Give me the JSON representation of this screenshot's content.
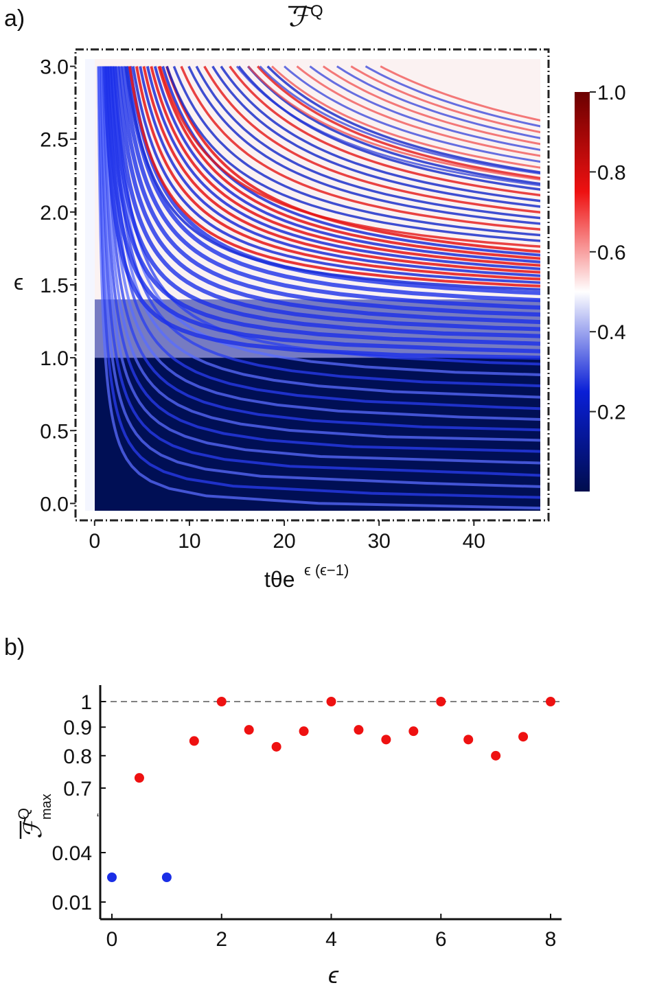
{
  "panels": {
    "a": "a)",
    "b": "b)"
  },
  "chart_data": [
    {
      "type": "heatmap",
      "title_symbol": "ℱ",
      "title_sup": "Q",
      "xlabel": "tθe",
      "xlabel_sup": "ϵ (ϵ−1)",
      "ylabel": "ϵ",
      "xlim": [
        -1,
        47
      ],
      "ylim": [
        -0.05,
        3.05
      ],
      "xticks": [
        0,
        10,
        20,
        30,
        40
      ],
      "xtick_labels": [
        "0",
        "10",
        "20",
        "30",
        "40"
      ],
      "yticks": [
        0.0,
        0.5,
        1.0,
        1.5,
        2.0,
        2.5,
        3.0
      ],
      "ytick_labels": [
        "0.0",
        "0.5",
        "1.0",
        "1.5",
        "2.0",
        "2.5",
        "3.0"
      ],
      "colorbar": {
        "min": 0.0,
        "max": 1.0,
        "ticks": [
          1.0,
          0.8,
          0.6,
          0.4,
          0.2
        ],
        "tick_labels": [
          "1.0",
          "0.8",
          "0.6",
          "0.4",
          "0.2"
        ],
        "colors": [
          "#000d4d",
          "#0a1fd6",
          "#ffffff",
          "#ee1111",
          "#6b0000"
        ]
      }
    },
    {
      "type": "scatter",
      "xlabel": "ϵ",
      "ylabel_symbol": "ℱ",
      "ylabel_sup": "Q",
      "ylabel_sub": "max",
      "yscale": "broken-log",
      "xlim": [
        -0.3,
        8.2
      ],
      "xticks": [
        0,
        2,
        4,
        6,
        8
      ],
      "xtick_labels": [
        "0",
        "2",
        "4",
        "6",
        "8"
      ],
      "yticks": [
        0.01,
        0.04,
        0.7,
        0.8,
        0.9,
        1.0
      ],
      "ytick_labels": [
        "0.01",
        "0.04",
        "0.7",
        "0.8",
        "0.9",
        "1"
      ],
      "reference_line": {
        "y": 1.0,
        "style": "dashed",
        "color": "#808080"
      },
      "series": [
        {
          "color": "#ee1111",
          "points": [
            [
              0.5,
              0.73
            ],
            [
              1.5,
              0.85
            ],
            [
              2.0,
              1.0
            ],
            [
              2.5,
              0.89
            ],
            [
              3.0,
              0.83
            ],
            [
              3.5,
              0.885
            ],
            [
              4.0,
              1.0
            ],
            [
              4.5,
              0.89
            ],
            [
              5.0,
              0.855
            ],
            [
              5.5,
              0.885
            ],
            [
              6.0,
              1.0
            ],
            [
              6.5,
              0.855
            ],
            [
              7.0,
              0.8
            ],
            [
              7.5,
              0.865
            ],
            [
              8.0,
              1.0
            ]
          ]
        },
        {
          "color": "#1a2ee6",
          "points": [
            [
              0.0,
              0.02
            ],
            [
              1.0,
              0.02
            ]
          ]
        }
      ]
    }
  ]
}
